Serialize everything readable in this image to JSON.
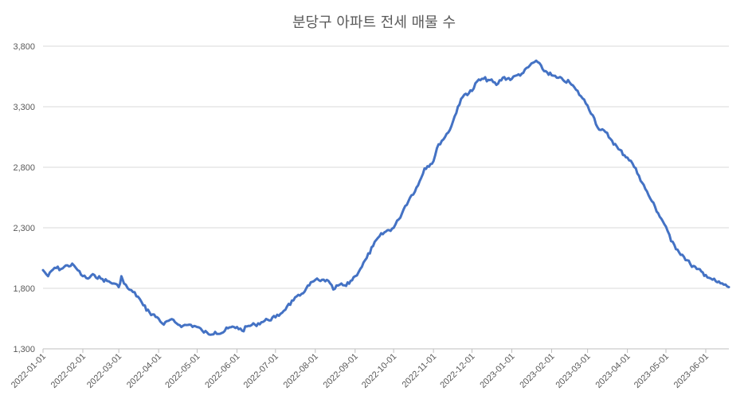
{
  "chart_data": {
    "type": "line",
    "title": "분당구 아파트 전세 매물 수",
    "xlabel": "",
    "ylabel": "",
    "ylim": [
      1300,
      3800
    ],
    "yticks": [
      1300,
      1800,
      2300,
      2800,
      3300,
      3800
    ],
    "ytick_labels": [
      "1,300",
      "1,800",
      "2,300",
      "2,800",
      "3,300",
      "3,800"
    ],
    "xlim": [
      "2022-01-01",
      "2023-06-19"
    ],
    "xticks": [
      "2022-01-01",
      "2022-02-01",
      "2022-03-01",
      "2022-04-01",
      "2022-05-01",
      "2022-06-01",
      "2022-07-01",
      "2022-08-01",
      "2022-09-01",
      "2022-10-01",
      "2022-11-01",
      "2022-12-01",
      "2023-01-01",
      "2023-02-01",
      "2023-03-01",
      "2023-04-01",
      "2023-05-01",
      "2023-06-01"
    ],
    "grid": true,
    "legend": "none",
    "series_color": "#4472c4",
    "series": [
      {
        "x": [
          "2022-01-01",
          "2022-01-05",
          "2022-01-10",
          "2022-01-15",
          "2022-01-20",
          "2022-01-25",
          "2022-01-28",
          "2022-02-01",
          "2022-02-05",
          "2022-02-10",
          "2022-02-15",
          "2022-02-20",
          "2022-02-25",
          "2022-03-01",
          "2022-03-03",
          "2022-03-05",
          "2022-03-08",
          "2022-03-12",
          "2022-03-16",
          "2022-03-20",
          "2022-03-25",
          "2022-04-01",
          "2022-04-05",
          "2022-04-10",
          "2022-04-15",
          "2022-04-20",
          "2022-04-25",
          "2022-05-01",
          "2022-05-05",
          "2022-05-10",
          "2022-05-15",
          "2022-05-20",
          "2022-05-25",
          "2022-06-01",
          "2022-06-05",
          "2022-06-10",
          "2022-06-15",
          "2022-06-20",
          "2022-06-25",
          "2022-07-01",
          "2022-07-05",
          "2022-07-10",
          "2022-07-15",
          "2022-07-20",
          "2022-07-25",
          "2022-08-01",
          "2022-08-05",
          "2022-08-10",
          "2022-08-15",
          "2022-08-20",
          "2022-08-25",
          "2022-09-01",
          "2022-09-05",
          "2022-09-10",
          "2022-09-15",
          "2022-09-20",
          "2022-09-25",
          "2022-10-01",
          "2022-10-05",
          "2022-10-10",
          "2022-10-15",
          "2022-10-20",
          "2022-10-25",
          "2022-11-01",
          "2022-11-05",
          "2022-11-10",
          "2022-11-15",
          "2022-11-20",
          "2022-11-25",
          "2022-12-01",
          "2022-12-05",
          "2022-12-10",
          "2022-12-15",
          "2022-12-20",
          "2022-12-25",
          "2023-01-01",
          "2023-01-05",
          "2023-01-10",
          "2023-01-15",
          "2023-01-20",
          "2023-01-25",
          "2023-02-01",
          "2023-02-05",
          "2023-02-10",
          "2023-02-15",
          "2023-02-20",
          "2023-02-25",
          "2023-03-01",
          "2023-03-05",
          "2023-03-10",
          "2023-03-15",
          "2023-03-20",
          "2023-03-25",
          "2023-04-01",
          "2023-04-05",
          "2023-04-10",
          "2023-04-15",
          "2023-04-20",
          "2023-04-25",
          "2023-05-01",
          "2023-05-05",
          "2023-05-10",
          "2023-05-15",
          "2023-05-20",
          "2023-05-25",
          "2023-06-01",
          "2023-06-05",
          "2023-06-10",
          "2023-06-15",
          "2023-06-19"
        ],
        "values": [
          1950,
          1900,
          1970,
          1960,
          1990,
          1990,
          1950,
          1900,
          1880,
          1910,
          1880,
          1860,
          1840,
          1810,
          1900,
          1840,
          1800,
          1770,
          1730,
          1660,
          1600,
          1550,
          1500,
          1540,
          1510,
          1490,
          1500,
          1480,
          1450,
          1420,
          1440,
          1430,
          1470,
          1480,
          1450,
          1490,
          1500,
          1520,
          1540,
          1560,
          1590,
          1650,
          1700,
          1740,
          1800,
          1870,
          1860,
          1870,
          1790,
          1830,
          1820,
          1900,
          1960,
          2050,
          2150,
          2230,
          2270,
          2300,
          2370,
          2480,
          2570,
          2650,
          2790,
          2850,
          2990,
          3050,
          3140,
          3300,
          3400,
          3430,
          3510,
          3530,
          3520,
          3480,
          3540,
          3530,
          3560,
          3580,
          3640,
          3680,
          3610,
          3560,
          3540,
          3520,
          3500,
          3440,
          3370,
          3310,
          3230,
          3110,
          3090,
          3020,
          2950,
          2880,
          2830,
          2730,
          2620,
          2520,
          2420,
          2310,
          2190,
          2120,
          2060,
          2000,
          1960,
          1910,
          1880,
          1850,
          1830,
          1810
        ]
      }
    ]
  }
}
